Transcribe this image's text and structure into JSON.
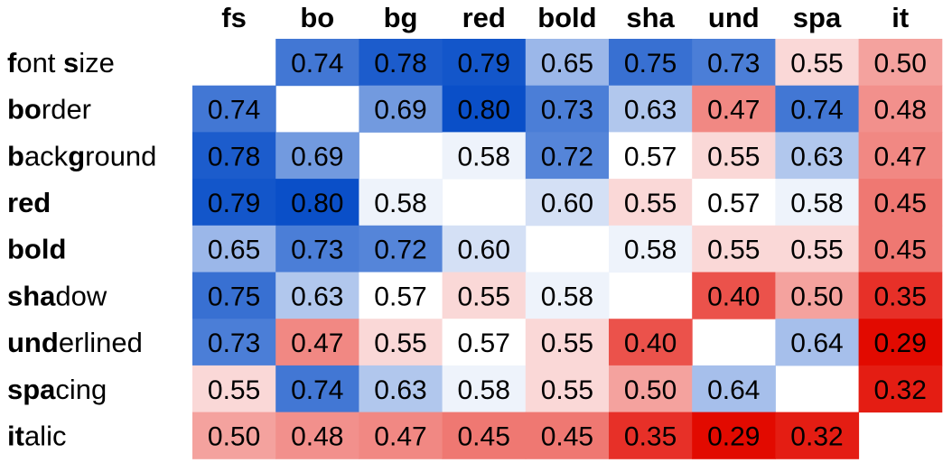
{
  "chart_data": {
    "type": "heatmap",
    "columns": [
      "fs",
      "bo",
      "bg",
      "red",
      "bold",
      "sha",
      "und",
      "spa",
      "it"
    ],
    "rows": [
      {
        "bold": "f",
        "rest": "ont ",
        "bold2": "s",
        "rest2": "ize"
      },
      {
        "bold": "bo",
        "rest": "rder",
        "bold2": "",
        "rest2": ""
      },
      {
        "bold": "b",
        "rest": "ack",
        "bold2": "g",
        "rest2": "round"
      },
      {
        "bold": "red",
        "rest": "",
        "bold2": "",
        "rest2": ""
      },
      {
        "bold": "bold",
        "rest": "",
        "bold2": "",
        "rest2": ""
      },
      {
        "bold": "sha",
        "rest": "dow",
        "bold2": "",
        "rest2": ""
      },
      {
        "bold": "und",
        "rest": "erlined",
        "bold2": "",
        "rest2": ""
      },
      {
        "bold": "spa",
        "rest": "cing",
        "bold2": "",
        "rest2": ""
      },
      {
        "bold": "it",
        "rest": "alic",
        "bold2": "",
        "rest2": ""
      }
    ],
    "values": [
      [
        null,
        0.74,
        0.78,
        0.79,
        0.65,
        0.75,
        0.73,
        0.55,
        0.5
      ],
      [
        0.74,
        null,
        0.69,
        0.8,
        0.73,
        0.63,
        0.47,
        0.74,
        0.48
      ],
      [
        0.78,
        0.69,
        null,
        0.58,
        0.72,
        0.57,
        0.55,
        0.63,
        0.47
      ],
      [
        0.79,
        0.8,
        0.58,
        null,
        0.6,
        0.55,
        0.57,
        0.58,
        0.45
      ],
      [
        0.65,
        0.73,
        0.72,
        0.6,
        null,
        0.58,
        0.55,
        0.55,
        0.45
      ],
      [
        0.75,
        0.63,
        0.57,
        0.55,
        0.58,
        null,
        0.4,
        0.5,
        0.35
      ],
      [
        0.73,
        0.47,
        0.55,
        0.57,
        0.55,
        0.4,
        null,
        0.64,
        0.29
      ],
      [
        0.55,
        0.74,
        0.63,
        0.58,
        0.55,
        0.5,
        0.64,
        null,
        0.32
      ],
      [
        0.5,
        0.48,
        0.47,
        0.45,
        0.45,
        0.35,
        0.29,
        0.32,
        null
      ]
    ],
    "color_scale": {
      "low": "#e20a00",
      "mid": "#ffffff",
      "high": "#0a4fc8",
      "midpoint": 0.57
    }
  }
}
